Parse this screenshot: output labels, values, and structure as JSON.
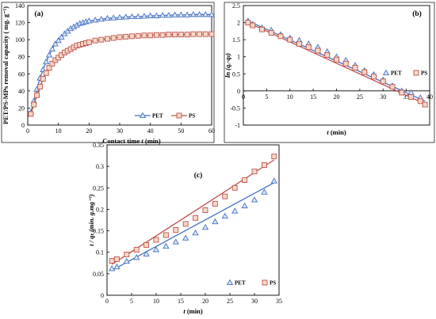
{
  "colors": {
    "PET": "#4472c4",
    "PS": "#c0504d",
    "PS_fill": "#f4d9c6",
    "PS_line": "#a65b25"
  },
  "chart_data": [
    {
      "id": "a",
      "type": "line",
      "panel_label": "(a)",
      "xlabel_prefix": "Contact time  ",
      "xlabel_var": "t",
      "xlabel_unit": " (min)",
      "ylabel": "PET/PS-MPs removal capacity  ( mg. g⁻¹)",
      "xlim": [
        0,
        60
      ],
      "ylim": [
        0,
        140
      ],
      "xticks": [
        0,
        10,
        20,
        30,
        40,
        50,
        60
      ],
      "yticks": [
        0,
        20,
        40,
        60,
        80,
        100,
        120,
        140
      ],
      "grid": false,
      "legend": "bottom-right",
      "series": [
        {
          "name": "PET",
          "marker": "triangle",
          "x": [
            1,
            2,
            3,
            4,
            5,
            6,
            7,
            8,
            9,
            10,
            11,
            12,
            13,
            14,
            15,
            16,
            17,
            18,
            19,
            20,
            22,
            24,
            26,
            28,
            30,
            32,
            34,
            36,
            38,
            40,
            42,
            44,
            46,
            48,
            50,
            52,
            54,
            56,
            58,
            60
          ],
          "y": [
            15,
            28,
            42,
            55,
            65,
            74,
            82,
            89,
            95,
            99,
            103,
            107,
            110,
            113,
            115,
            117,
            119,
            120,
            121,
            122,
            123,
            124,
            125,
            125.5,
            126,
            126.5,
            127,
            127,
            127.5,
            128,
            128,
            128.5,
            128.5,
            129,
            129,
            129,
            129.5,
            129.5,
            129.5,
            129.5
          ]
        },
        {
          "name": "PS",
          "marker": "square",
          "x": [
            1,
            2,
            3,
            4,
            5,
            6,
            7,
            8,
            9,
            10,
            11,
            12,
            13,
            14,
            15,
            16,
            17,
            18,
            19,
            20,
            22,
            24,
            26,
            28,
            30,
            32,
            34,
            36,
            38,
            40,
            42,
            44,
            46,
            48,
            50,
            52,
            54,
            56,
            58,
            60
          ],
          "y": [
            13,
            24,
            35,
            45,
            54,
            61,
            67,
            72,
            76,
            79,
            82,
            85,
            87,
            89,
            91,
            93,
            94,
            95,
            96,
            97,
            99,
            100,
            101,
            102,
            103,
            103.5,
            104,
            104.5,
            105,
            105,
            105.5,
            105.5,
            106,
            106,
            106,
            106,
            106.5,
            106.5,
            106.5,
            106.5
          ]
        }
      ]
    },
    {
      "id": "b",
      "type": "scatter",
      "panel_label": "(b)",
      "xlabel_var": "t",
      "xlabel_unit": " (min)",
      "ylabel": "ln (qₑ-qₜ)",
      "xlim": [
        0,
        40
      ],
      "ylim": [
        -1,
        2.5
      ],
      "xticks": [
        0,
        5,
        10,
        15,
        20,
        25,
        30,
        35,
        40
      ],
      "yticks": [
        -1,
        -0.5,
        0,
        0.5,
        1,
        1.5,
        2,
        2.5
      ],
      "grid": false,
      "legend": "right",
      "series": [
        {
          "name": "PET",
          "marker": "triangle",
          "x": [
            1,
            2,
            4,
            6,
            8,
            10,
            12,
            14,
            16,
            18,
            20,
            22,
            24,
            26,
            28,
            30,
            32,
            34,
            36,
            38
          ],
          "y": [
            2.05,
            1.95,
            1.85,
            1.78,
            1.65,
            1.55,
            1.48,
            1.38,
            1.28,
            1.15,
            1.0,
            0.9,
            0.75,
            0.6,
            0.48,
            0.32,
            0.15,
            0.0,
            -0.05,
            -0.2
          ],
          "fit": [
            [
              1,
              2.05
            ],
            [
              39,
              -0.3
            ]
          ]
        },
        {
          "name": "PS",
          "marker": "square",
          "x": [
            1,
            2,
            4,
            6,
            8,
            10,
            12,
            14,
            16,
            18,
            20,
            22,
            24,
            26,
            28,
            30,
            32,
            34,
            36,
            38,
            39
          ],
          "y": [
            2.0,
            1.92,
            1.8,
            1.7,
            1.6,
            1.5,
            1.38,
            1.28,
            1.18,
            1.05,
            0.92,
            0.8,
            0.68,
            0.55,
            0.42,
            0.28,
            0.12,
            -0.05,
            -0.18,
            -0.3,
            -0.4
          ],
          "fit": [
            [
              1,
              2.0
            ],
            [
              39,
              -0.38
            ]
          ]
        }
      ]
    },
    {
      "id": "c",
      "type": "scatter",
      "panel_label": "(c)",
      "xlabel_var": "t",
      "xlabel_unit": " (min)",
      "ylabel": "t / qₜ (min. g.mg⁻¹)",
      "xlim": [
        0,
        35
      ],
      "ylim": [
        0,
        0.35
      ],
      "xticks": [
        0,
        5,
        10,
        15,
        20,
        25,
        30,
        35
      ],
      "yticks": [
        0,
        0.05,
        0.1,
        0.15,
        0.2,
        0.25,
        0.3,
        0.35
      ],
      "grid": false,
      "legend": "bottom-right",
      "series": [
        {
          "name": "PET",
          "marker": "triangle",
          "x": [
            1,
            2,
            4,
            6,
            8,
            10,
            12,
            14,
            16,
            18,
            20,
            22,
            24,
            26,
            28,
            30,
            32,
            34
          ],
          "y": [
            0.062,
            0.066,
            0.079,
            0.088,
            0.096,
            0.106,
            0.114,
            0.124,
            0.133,
            0.145,
            0.158,
            0.171,
            0.184,
            0.196,
            0.208,
            0.222,
            0.24,
            0.266
          ],
          "fit": [
            [
              1,
              0.058
            ],
            [
              34,
              0.262
            ]
          ]
        },
        {
          "name": "PS",
          "marker": "square",
          "x": [
            1,
            2,
            4,
            6,
            8,
            10,
            12,
            14,
            16,
            18,
            20,
            22,
            24,
            26,
            28,
            30,
            32,
            34
          ],
          "y": [
            0.08,
            0.084,
            0.095,
            0.106,
            0.117,
            0.129,
            0.14,
            0.152,
            0.166,
            0.18,
            0.198,
            0.213,
            0.23,
            0.25,
            0.268,
            0.288,
            0.303,
            0.323
          ],
          "fit": [
            [
              1,
              0.072
            ],
            [
              34,
              0.315
            ]
          ]
        }
      ]
    }
  ]
}
